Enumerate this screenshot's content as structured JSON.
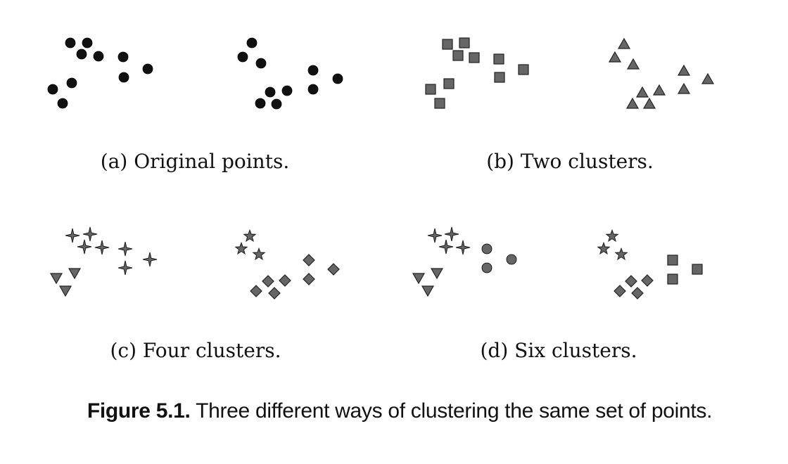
{
  "panels": [
    {
      "id": "a",
      "caption": "(a) Original points."
    },
    {
      "id": "b",
      "caption": "(b) Two clusters."
    },
    {
      "id": "c",
      "caption": "(c) Four clusters."
    },
    {
      "id": "d",
      "caption": "(d) Six clusters."
    }
  ],
  "figure_caption": {
    "label": "Figure 5.1.",
    "text": "Three different ways of clustering the same set of points."
  },
  "colors": {
    "point_fill": "#111111",
    "marker_fill": "#666666",
    "marker_stroke": "#222222"
  },
  "marker_shapes": [
    "circle",
    "square",
    "triangle",
    "star4",
    "star5",
    "diamond",
    "triangle-down"
  ]
}
